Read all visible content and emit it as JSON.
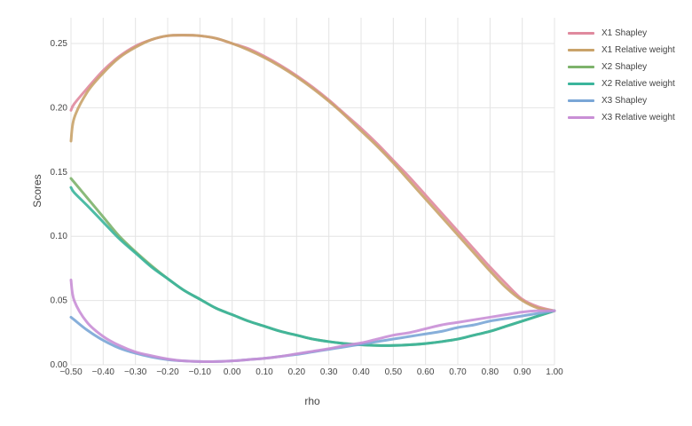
{
  "chart_data": {
    "type": "line",
    "title": "",
    "xlabel": "rho",
    "ylabel": "Scores",
    "xlim": [
      -0.5,
      1.0
    ],
    "ylim": [
      0.0,
      0.26
    ],
    "grid": true,
    "legend_position": "right",
    "x_ticks": [
      "−0.50",
      "−0.40",
      "−0.30",
      "−0.20",
      "−0.10",
      "0.00",
      "0.10",
      "0.20",
      "0.30",
      "0.40",
      "0.50",
      "0.60",
      "0.70",
      "0.80",
      "0.90",
      "1.00"
    ],
    "y_ticks": [
      "0.00",
      "0.05",
      "0.10",
      "0.15",
      "0.20",
      "0.25"
    ],
    "x": [
      -0.5,
      -0.49,
      -0.45,
      -0.4,
      -0.35,
      -0.3,
      -0.25,
      -0.2,
      -0.15,
      -0.1,
      -0.05,
      0.0,
      0.05,
      0.1,
      0.15,
      0.2,
      0.25,
      0.3,
      0.35,
      0.4,
      0.45,
      0.5,
      0.55,
      0.6,
      0.65,
      0.7,
      0.75,
      0.8,
      0.85,
      0.9,
      0.95,
      1.0
    ],
    "series": [
      {
        "name": "X1 Shapley",
        "color": "#e08a9e",
        "values": [
          0.198,
          0.203,
          0.215,
          0.229,
          0.24,
          0.248,
          0.253,
          0.256,
          0.2565,
          0.256,
          0.254,
          0.25,
          0.246,
          0.24,
          0.233,
          0.225,
          0.216,
          0.206,
          0.195,
          0.184,
          0.172,
          0.159,
          0.146,
          0.132,
          0.118,
          0.104,
          0.09,
          0.076,
          0.063,
          0.051,
          0.045,
          0.042
        ]
      },
      {
        "name": "X1 Relative weight",
        "color": "#c9a36a",
        "values": [
          0.174,
          0.192,
          0.212,
          0.227,
          0.239,
          0.247,
          0.253,
          0.256,
          0.2565,
          0.256,
          0.254,
          0.25,
          0.245,
          0.239,
          0.232,
          0.224,
          0.215,
          0.205,
          0.194,
          0.182,
          0.17,
          0.157,
          0.143,
          0.129,
          0.115,
          0.101,
          0.087,
          0.073,
          0.06,
          0.05,
          0.044,
          0.042
        ]
      },
      {
        "name": "X2 Shapley",
        "color": "#7db36b",
        "values": [
          0.145,
          0.142,
          0.13,
          0.115,
          0.1,
          0.088,
          0.077,
          0.067,
          0.058,
          0.051,
          0.044,
          0.039,
          0.034,
          0.03,
          0.026,
          0.023,
          0.02,
          0.018,
          0.0165,
          0.0155,
          0.015,
          0.015,
          0.0155,
          0.0165,
          0.018,
          0.02,
          0.023,
          0.026,
          0.03,
          0.034,
          0.038,
          0.042
        ]
      },
      {
        "name": "X2 Relative weight",
        "color": "#3bb59c",
        "values": [
          0.138,
          0.134,
          0.124,
          0.111,
          0.098,
          0.087,
          0.076,
          0.067,
          0.058,
          0.051,
          0.044,
          0.039,
          0.034,
          0.03,
          0.026,
          0.023,
          0.02,
          0.018,
          0.0165,
          0.0155,
          0.015,
          0.015,
          0.0155,
          0.0165,
          0.018,
          0.02,
          0.023,
          0.026,
          0.03,
          0.034,
          0.038,
          0.042
        ]
      },
      {
        "name": "X3 Shapley",
        "color": "#7aa6d6",
        "values": [
          0.037,
          0.035,
          0.027,
          0.019,
          0.013,
          0.009,
          0.006,
          0.004,
          0.003,
          0.0025,
          0.0025,
          0.003,
          0.004,
          0.005,
          0.0065,
          0.008,
          0.01,
          0.012,
          0.014,
          0.016,
          0.018,
          0.02,
          0.022,
          0.024,
          0.026,
          0.029,
          0.031,
          0.034,
          0.036,
          0.038,
          0.04,
          0.042
        ]
      },
      {
        "name": "X3 Relative weight",
        "color": "#c98fd6",
        "values": [
          0.066,
          0.05,
          0.033,
          0.022,
          0.015,
          0.01,
          0.007,
          0.0045,
          0.003,
          0.0025,
          0.0025,
          0.003,
          0.004,
          0.005,
          0.0065,
          0.0085,
          0.0105,
          0.0125,
          0.015,
          0.017,
          0.02,
          0.023,
          0.025,
          0.028,
          0.031,
          0.033,
          0.035,
          0.037,
          0.039,
          0.041,
          0.042,
          0.042
        ]
      }
    ]
  }
}
